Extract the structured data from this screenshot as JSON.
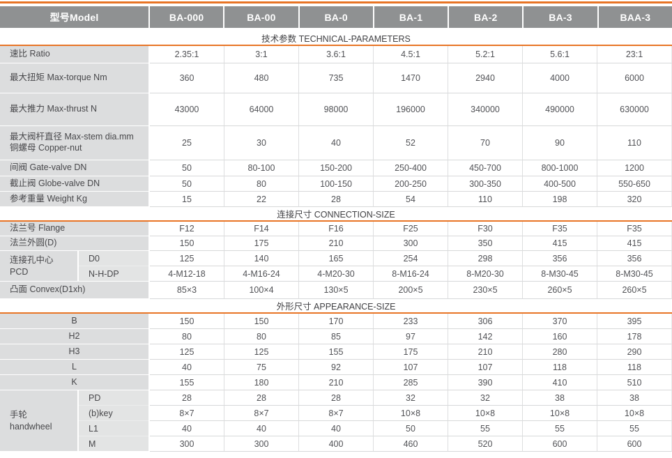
{
  "colors": {
    "accent": "#e87425",
    "header_bg": "#8f9192",
    "label_bg": "#dcddde",
    "sublabel_bg": "#e3e4e4",
    "header_text": "#ffffff"
  },
  "table": {
    "header": {
      "model_label": "型号Model",
      "models": [
        "BA-000",
        "BA-00",
        "BA-0",
        "BA-1",
        "BA-2",
        "BA-3",
        "BAA-3"
      ]
    },
    "sections": [
      {
        "title": "技术参数 TECHNICAL-PARAMETERS",
        "rows": [
          {
            "label": "速比 Ratio",
            "values": [
              "2.35:1",
              "3:1",
              "3.6:1",
              "4.5:1",
              "5.2:1",
              "5.6:1",
              "23:1"
            ]
          },
          {
            "label": "最大扭矩  Max-torque Nm",
            "values": [
              "360",
              "480",
              "735",
              "1470",
              "2940",
              "4000",
              "6000"
            ]
          },
          {
            "label": "最大推力  Max-thrust N",
            "values": [
              "43000",
              "64000",
              "98000",
              "196000",
              "340000",
              "490000",
              "630000"
            ]
          },
          {
            "label": "最大阀杆直径 Max-stem  dia.mm\n铜螺母  Copper-nut",
            "values": [
              "25",
              "30",
              "40",
              "52",
              "70",
              "90",
              "110"
            ]
          },
          {
            "label": "间阀  Gate-valve   DN",
            "values": [
              "50",
              "80-100",
              "150-200",
              "250-400",
              "450-700",
              "800-1000",
              "1200"
            ]
          },
          {
            "label": "截止阀  Globe-valve   DN",
            "values": [
              "50",
              "80",
              "100-150",
              "200-250",
              "300-350",
              "400-500",
              "550-650"
            ]
          },
          {
            "label": "参考重量 Weight   Kg",
            "values": [
              "15",
              "22",
              "28",
              "54",
              "110",
              "198",
              "320"
            ]
          }
        ]
      },
      {
        "title": "连接尺寸 CONNECTION-SIZE",
        "rows": [
          {
            "label": "法兰号 Flange",
            "values": [
              "F12",
              "F14",
              "F16",
              "F25",
              "F30",
              "F35",
              "F35"
            ]
          },
          {
            "label": "法兰外圆(D)",
            "values": [
              "150",
              "175",
              "210",
              "300",
              "350",
              "415",
              "415"
            ]
          },
          {
            "group": "连接孔中心\nPCD",
            "subrows": [
              {
                "label": "D0",
                "values": [
                  "125",
                  "140",
                  "165",
                  "254",
                  "298",
                  "356",
                  "356"
                ]
              },
              {
                "label": "N-H-DP",
                "values": [
                  "4-M12-18",
                  "4-M16-24",
                  "4-M20-30",
                  "8-M16-24",
                  "8-M20-30",
                  "8-M30-45",
                  "8-M30-45"
                ]
              }
            ]
          },
          {
            "label": "凸面 Convex(D1xh)",
            "values": [
              "85×3",
              "100×4",
              "130×5",
              "200×5",
              "230×5",
              "260×5",
              "260×5"
            ]
          }
        ]
      },
      {
        "title": "外形尺寸 APPEARANCE-SIZE",
        "rows": [
          {
            "label": "B",
            "values": [
              "150",
              "150",
              "170",
              "233",
              "306",
              "370",
              "395"
            ]
          },
          {
            "label": "H2",
            "values": [
              "80",
              "80",
              "85",
              "97",
              "142",
              "160",
              "178"
            ]
          },
          {
            "label": "H3",
            "values": [
              "125",
              "125",
              "155",
              "175",
              "210",
              "280",
              "290"
            ]
          },
          {
            "label": "L",
            "values": [
              "40",
              "75",
              "92",
              "107",
              "107",
              "118",
              "118"
            ]
          },
          {
            "label": "K",
            "values": [
              "155",
              "180",
              "210",
              "285",
              "390",
              "410",
              "510"
            ]
          },
          {
            "group": "手轮\nhandwheel",
            "subrows": [
              {
                "label": "PD",
                "values": [
                  "28",
                  "28",
                  "28",
                  "32",
                  "32",
                  "38",
                  "38"
                ]
              },
              {
                "label": "(b)key",
                "values": [
                  "8×7",
                  "8×7",
                  "8×7",
                  "10×8",
                  "10×8",
                  "10×8",
                  "10×8"
                ]
              },
              {
                "label": "L1",
                "values": [
                  "40",
                  "40",
                  "40",
                  "50",
                  "55",
                  "55",
                  "55"
                ]
              },
              {
                "label": "M",
                "values": [
                  "300",
                  "300",
                  "400",
                  "460",
                  "520",
                  "600",
                  "600"
                ]
              }
            ]
          }
        ]
      }
    ]
  }
}
